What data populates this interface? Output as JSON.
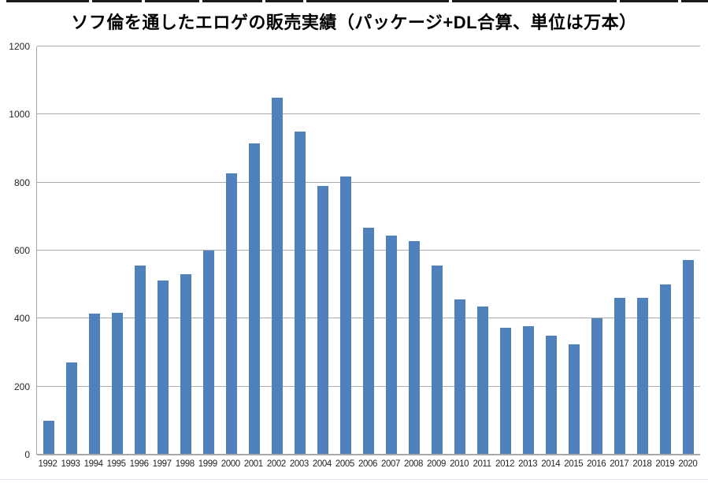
{
  "title": "ソフ倫を通したエロゲの販売実績（パッケージ+DL合算、単位は万本）",
  "colors": {
    "bar": "#4f81bd",
    "gridline": "#ababab",
    "axis": "#a6a6a6",
    "tick_label": "#262626",
    "top_strip": "#1a1a1a",
    "bottom_rule": "#dce4f0"
  },
  "chart_data": {
    "type": "bar",
    "title": "ソフ倫を通したエロゲの販売実績（パッケージ+DL合算、単位は万本）",
    "categories": [
      "1992",
      "1993",
      "1994",
      "1995",
      "1996",
      "1997",
      "1998",
      "1999",
      "2000",
      "2001",
      "2002",
      "2003",
      "2004",
      "2005",
      "2006",
      "2007",
      "2008",
      "2009",
      "2010",
      "2011",
      "2012",
      "2013",
      "2014",
      "2015",
      "2016",
      "2017",
      "2018",
      "2019",
      "2020"
    ],
    "values": [
      100,
      270,
      415,
      417,
      557,
      512,
      530,
      600,
      828,
      916,
      1050,
      950,
      790,
      818,
      668,
      645,
      627,
      557,
      456,
      435,
      372,
      378,
      350,
      325,
      400,
      462,
      462,
      500,
      572
    ],
    "xlabel": "",
    "ylabel": "",
    "ylim": [
      0,
      1200
    ],
    "yticks": [
      0,
      200,
      400,
      600,
      800,
      1000,
      1200
    ],
    "grid": "horizontal",
    "legend": "none",
    "bar_color": "#4f81bd"
  }
}
